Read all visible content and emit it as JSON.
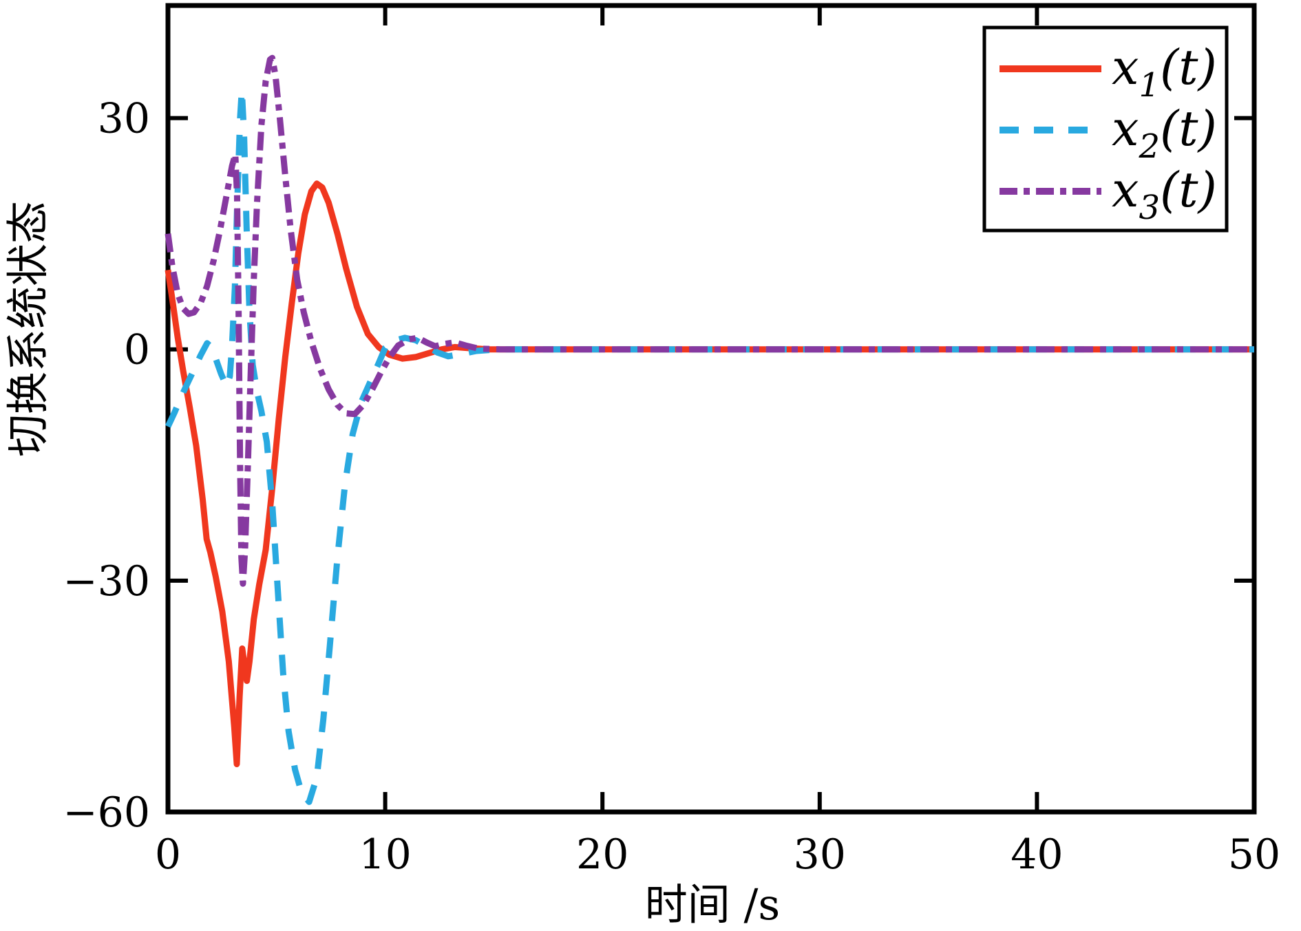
{
  "figure": {
    "xlabel": "时间 /s",
    "ylabel": "切换系统状态",
    "background": "#ffffff",
    "axis_color": "#000000"
  },
  "chart_data": {
    "type": "line",
    "title": "",
    "xlabel": "时间 /s",
    "ylabel": "切换系统状态",
    "xlim": [
      0,
      50
    ],
    "ylim": [
      -60,
      44.6
    ],
    "grid": false,
    "legend_position": "top-right",
    "tick_direction": "in",
    "xticks": [
      {
        "v": 0,
        "label": "0"
      },
      {
        "v": 10,
        "label": "10"
      },
      {
        "v": 20,
        "label": "20"
      },
      {
        "v": 30,
        "label": "30"
      },
      {
        "v": 40,
        "label": "40"
      },
      {
        "v": 50,
        "label": "50"
      }
    ],
    "yticks": [
      {
        "v": 30,
        "label": "30"
      },
      {
        "v": 0,
        "label": "0"
      },
      {
        "v": -30,
        "label": "−30"
      },
      {
        "v": -60,
        "label": "−60"
      }
    ],
    "series": [
      {
        "name": "x1",
        "label_base": "x",
        "label_sub": "1",
        "label_rest": "(t)",
        "color": "#F0371E",
        "style": "solid",
        "points": [
          [
            0,
            10.3
          ],
          [
            0.2,
            6.5
          ],
          [
            0.45,
            1.5
          ],
          [
            0.7,
            -2.8
          ],
          [
            1,
            -7.5
          ],
          [
            1.3,
            -12.5
          ],
          [
            1.6,
            -19.5
          ],
          [
            1.78,
            -24.6
          ],
          [
            1.95,
            -26.3
          ],
          [
            2.2,
            -29.5
          ],
          [
            2.5,
            -34
          ],
          [
            2.8,
            -40.5
          ],
          [
            3.05,
            -49
          ],
          [
            3.17,
            -53.8
          ],
          [
            3.3,
            -45
          ],
          [
            3.42,
            -38.8
          ],
          [
            3.55,
            -41.5
          ],
          [
            3.63,
            -43
          ],
          [
            3.75,
            -40.5
          ],
          [
            3.95,
            -35
          ],
          [
            4.2,
            -30.5
          ],
          [
            4.5,
            -26
          ],
          [
            4.8,
            -18
          ],
          [
            5.1,
            -9
          ],
          [
            5.4,
            -1
          ],
          [
            5.7,
            6
          ],
          [
            6,
            12.5
          ],
          [
            6.3,
            17.5
          ],
          [
            6.6,
            20.5
          ],
          [
            6.85,
            21.5
          ],
          [
            7.1,
            21
          ],
          [
            7.4,
            19
          ],
          [
            7.8,
            15
          ],
          [
            8.2,
            10.5
          ],
          [
            8.7,
            5.5
          ],
          [
            9.2,
            2
          ],
          [
            9.7,
            0.3
          ],
          [
            10.2,
            -0.7
          ],
          [
            10.8,
            -1.2
          ],
          [
            11.4,
            -1
          ],
          [
            12,
            -0.5
          ],
          [
            12.6,
            0
          ],
          [
            13.2,
            0.3
          ],
          [
            13.9,
            0.15
          ],
          [
            14.8,
            0
          ],
          [
            16,
            0
          ],
          [
            20,
            0
          ],
          [
            25,
            0
          ],
          [
            30,
            0
          ],
          [
            35,
            0
          ],
          [
            40,
            0
          ],
          [
            45,
            0
          ],
          [
            50,
            0
          ]
        ]
      },
      {
        "name": "x2",
        "label_base": "x",
        "label_sub": "2",
        "label_rest": "(t)",
        "color": "#29A9E0",
        "style": "dashed",
        "points": [
          [
            0,
            -10
          ],
          [
            0.3,
            -8.2
          ],
          [
            0.6,
            -6.2
          ],
          [
            0.9,
            -4.4
          ],
          [
            1.2,
            -2.6
          ],
          [
            1.5,
            -0.8
          ],
          [
            1.8,
            0.8
          ],
          [
            2,
            0.3
          ],
          [
            2.2,
            -1.2
          ],
          [
            2.45,
            -3.2
          ],
          [
            2.7,
            -4.8
          ],
          [
            2.85,
            -3.5
          ],
          [
            2.95,
            0.5
          ],
          [
            3.08,
            8
          ],
          [
            3.2,
            20
          ],
          [
            3.32,
            30
          ],
          [
            3.4,
            33.6
          ],
          [
            3.5,
            28
          ],
          [
            3.62,
            16
          ],
          [
            3.75,
            5
          ],
          [
            3.9,
            -2
          ],
          [
            4.1,
            -5.5
          ],
          [
            4.3,
            -8
          ],
          [
            4.55,
            -12
          ],
          [
            4.8,
            -20
          ],
          [
            5.05,
            -31
          ],
          [
            5.3,
            -42
          ],
          [
            5.55,
            -49.5
          ],
          [
            5.85,
            -54.5
          ],
          [
            6.15,
            -57.5
          ],
          [
            6.5,
            -58.7
          ],
          [
            6.85,
            -55.5
          ],
          [
            7.15,
            -48
          ],
          [
            7.45,
            -38.5
          ],
          [
            7.8,
            -27
          ],
          [
            8.15,
            -17.5
          ],
          [
            8.5,
            -11
          ],
          [
            8.9,
            -6.8
          ],
          [
            9.3,
            -4.3
          ],
          [
            9.7,
            -1.8
          ],
          [
            10,
            0.2
          ],
          [
            10.4,
            1.1
          ],
          [
            10.9,
            1.5
          ],
          [
            11.4,
            1.2
          ],
          [
            11.9,
            0.4
          ],
          [
            12.4,
            -0.4
          ],
          [
            12.9,
            -0.9
          ],
          [
            13.5,
            -0.6
          ],
          [
            14.2,
            -0.2
          ],
          [
            15.2,
            0
          ],
          [
            17,
            0
          ],
          [
            20,
            0
          ],
          [
            25,
            0
          ],
          [
            30,
            0
          ],
          [
            35,
            0
          ],
          [
            40,
            0
          ],
          [
            45,
            0
          ],
          [
            50,
            0
          ]
        ]
      },
      {
        "name": "x3",
        "label_base": "x",
        "label_sub": "3",
        "label_rest": "(t)",
        "color": "#8639A0",
        "style": "dashdot",
        "points": [
          [
            0,
            15
          ],
          [
            0.2,
            10.8
          ],
          [
            0.45,
            7.2
          ],
          [
            0.7,
            5.3
          ],
          [
            0.95,
            4.6
          ],
          [
            1.2,
            4.8
          ],
          [
            1.5,
            6
          ],
          [
            1.8,
            8.2
          ],
          [
            2.1,
            11.5
          ],
          [
            2.4,
            15.5
          ],
          [
            2.7,
            20
          ],
          [
            2.95,
            23.8
          ],
          [
            3.1,
            25.3
          ],
          [
            3.18,
            20
          ],
          [
            3.25,
            5
          ],
          [
            3.32,
            -15
          ],
          [
            3.38,
            -27
          ],
          [
            3.45,
            -30.4
          ],
          [
            3.55,
            -26
          ],
          [
            3.68,
            -15
          ],
          [
            3.82,
            -2
          ],
          [
            3.95,
            9
          ],
          [
            4.1,
            19
          ],
          [
            4.3,
            29
          ],
          [
            4.5,
            34.8
          ],
          [
            4.7,
            37.6
          ],
          [
            4.8,
            37.8
          ],
          [
            4.95,
            35.5
          ],
          [
            5.15,
            30
          ],
          [
            5.4,
            22.5
          ],
          [
            5.65,
            15.5
          ],
          [
            5.95,
            9
          ],
          [
            6.25,
            4.8
          ],
          [
            6.6,
            1
          ],
          [
            7,
            -2.5
          ],
          [
            7.4,
            -5.2
          ],
          [
            7.8,
            -7.2
          ],
          [
            8.2,
            -8.3
          ],
          [
            8.6,
            -8.4
          ],
          [
            9,
            -7.2
          ],
          [
            9.4,
            -5.2
          ],
          [
            9.8,
            -3
          ],
          [
            10.2,
            -1
          ],
          [
            10.6,
            0.5
          ],
          [
            11.1,
            1.3
          ],
          [
            11.5,
            1.5
          ],
          [
            11.9,
            0.9
          ],
          [
            12.3,
            0.4
          ],
          [
            12.7,
            0.7
          ],
          [
            13.2,
            0.9
          ],
          [
            13.7,
            0.5
          ],
          [
            14.3,
            0.1
          ],
          [
            15.3,
            0
          ],
          [
            17,
            0
          ],
          [
            20,
            0
          ],
          [
            25,
            0
          ],
          [
            30,
            0
          ],
          [
            35,
            0
          ],
          [
            40,
            0
          ],
          [
            45,
            0
          ],
          [
            50,
            0
          ]
        ]
      }
    ]
  }
}
